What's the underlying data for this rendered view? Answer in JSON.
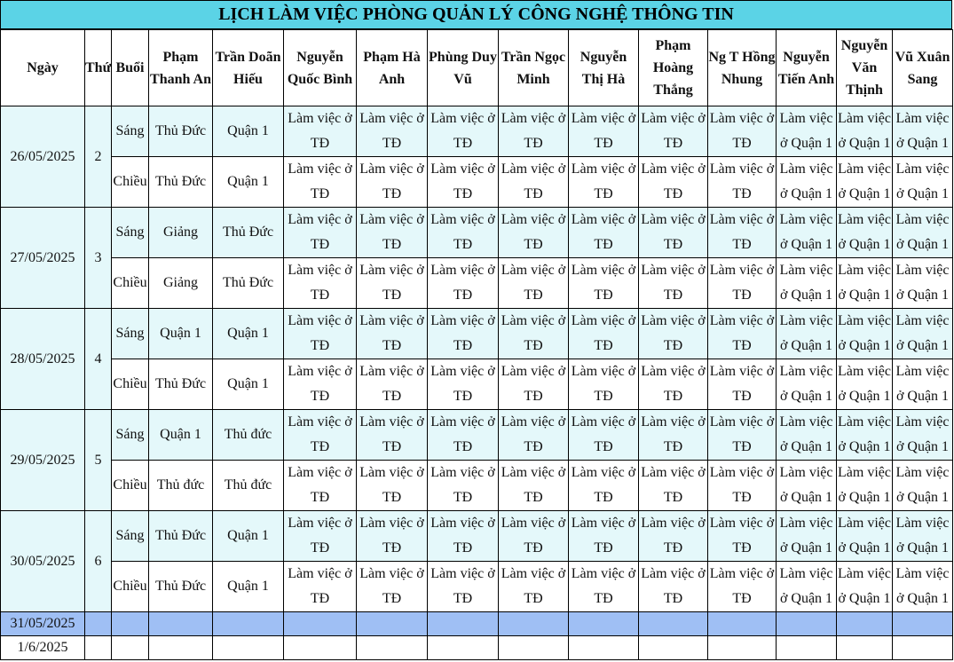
{
  "title": "LỊCH LÀM VIỆC PHÒNG QUẢN LÝ CÔNG NGHỆ THÔNG TIN",
  "headers": {
    "date": "Ngày",
    "weekday": "Thứ",
    "session": "Buổi",
    "people": [
      "Phạm Thanh An",
      "Trần Doãn Hiếu",
      "Nguyễn Quốc Bình",
      "Phạm Hà Anh",
      "Phùng Duy Vũ",
      "Trần Ngọc Minh",
      "Nguyễn Thị Hà",
      "Phạm Hoàng Thắng",
      "Ng T Hồng Nhung",
      "Nguyễn Tiến Anh",
      "Nguyễn Văn Thịnh",
      "Vũ Xuân Sang"
    ]
  },
  "sessions": {
    "morning": "Sáng",
    "afternoon": "Chiều"
  },
  "common": {
    "td": "Làm việc ở TĐ",
    "q1": "Làm việc ở Quận 1"
  },
  "days": [
    {
      "date": "26/05/2025",
      "weekday": "2",
      "morning": [
        "Thủ Đức",
        "Quận 1"
      ],
      "afternoon": [
        "Thủ Đức",
        "Quận 1"
      ]
    },
    {
      "date": "27/05/2025",
      "weekday": "3",
      "morning": [
        "Giảng",
        "Thủ Đức"
      ],
      "afternoon": [
        "Giảng",
        "Thủ Đức"
      ]
    },
    {
      "date": "28/05/2025",
      "weekday": "4",
      "morning": [
        "Quận 1",
        "Quận 1"
      ],
      "afternoon": [
        "Thủ Đức",
        "Quận 1"
      ]
    },
    {
      "date": "29/05/2025",
      "weekday": "5",
      "morning": [
        "Quận 1",
        "Thủ đức"
      ],
      "afternoon": [
        "Thủ đức",
        "Thủ đức"
      ]
    },
    {
      "date": "30/05/2025",
      "weekday": "6",
      "morning": [
        "Thủ Đức",
        "Quận 1"
      ],
      "afternoon": [
        "Thủ Đức",
        "Quận 1"
      ]
    }
  ],
  "extra_rows": [
    "31/05/2025",
    "1/6/2025"
  ],
  "colors": {
    "title_bg": "#5bd3e6",
    "morning_bg": "#e4f8fa",
    "highlight_row": "#9fbff4"
  }
}
